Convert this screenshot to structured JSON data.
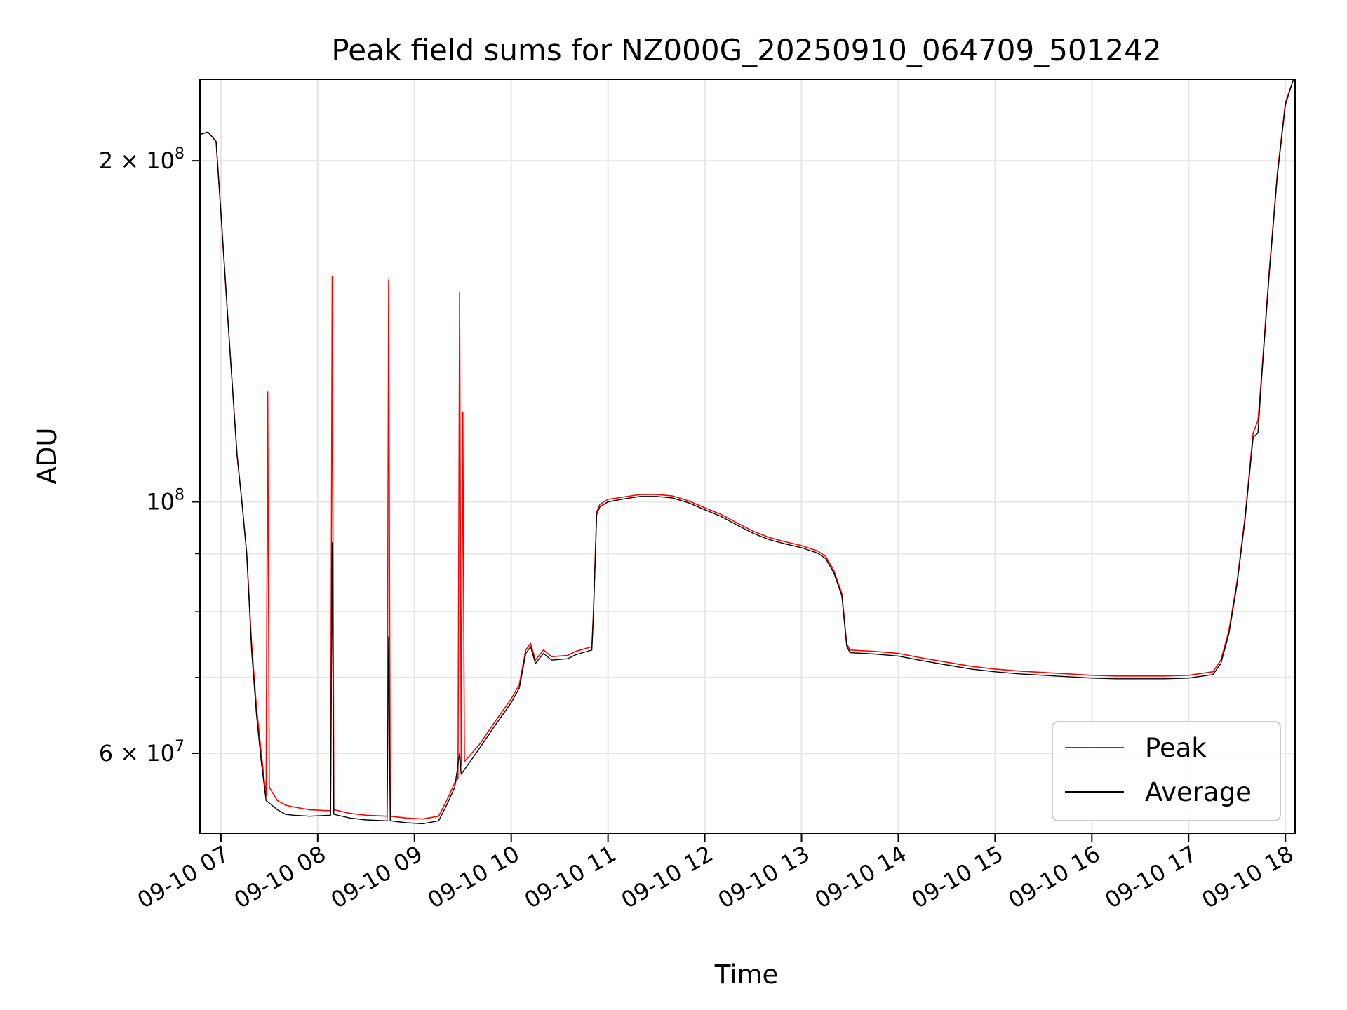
{
  "chart_data": {
    "type": "line",
    "title": "Peak field sums for NZ000G_20250910_064709_501242",
    "xlabel": "Time",
    "ylabel": "ADU",
    "y_scale": "log",
    "xlim": [
      "2025-09-10 06:47",
      "2025-09-10 18:06"
    ],
    "ylim": [
      51000000,
      236000000
    ],
    "grid": true,
    "legend_position": "lower-right",
    "x_ticks": [
      {
        "time": "2025-09-10 07:00",
        "label": "09-10 07"
      },
      {
        "time": "2025-09-10 08:00",
        "label": "09-10 08"
      },
      {
        "time": "2025-09-10 09:00",
        "label": "09-10 09"
      },
      {
        "time": "2025-09-10 10:00",
        "label": "09-10 10"
      },
      {
        "time": "2025-09-10 11:00",
        "label": "09-10 11"
      },
      {
        "time": "2025-09-10 12:00",
        "label": "09-10 12"
      },
      {
        "time": "2025-09-10 13:00",
        "label": "09-10 13"
      },
      {
        "time": "2025-09-10 14:00",
        "label": "09-10 14"
      },
      {
        "time": "2025-09-10 15:00",
        "label": "09-10 15"
      },
      {
        "time": "2025-09-10 16:00",
        "label": "09-10 16"
      },
      {
        "time": "2025-09-10 17:00",
        "label": "09-10 17"
      },
      {
        "time": "2025-09-10 18:00",
        "label": "09-10 18"
      }
    ],
    "y_ticks": [
      {
        "value": 200000000,
        "base": "2",
        "sup": "8",
        "kind": "sci"
      },
      {
        "value": 100000000,
        "base": "",
        "sup": "8",
        "kind": "pow"
      },
      {
        "value": 60000000,
        "base": "6",
        "sup": "7",
        "kind": "sci"
      }
    ],
    "y_minor_ticks": [
      70000000,
      80000000,
      90000000,
      300000000
    ],
    "series": [
      {
        "name": "Peak",
        "color": "#ff0000",
        "points": [
          [
            "2025-09-10 06:47",
            211000000
          ],
          [
            "2025-09-10 06:52",
            212000000
          ],
          [
            "2025-09-10 06:57",
            208000000
          ],
          [
            "2025-09-10 07:00",
            180000000
          ],
          [
            "2025-09-10 07:05",
            140000000
          ],
          [
            "2025-09-10 07:10",
            110000000
          ],
          [
            "2025-09-10 07:13",
            100000000
          ],
          [
            "2025-09-10 07:16",
            90000000
          ],
          [
            "2025-09-10 07:19",
            75000000
          ],
          [
            "2025-09-10 07:22",
            66000000
          ],
          [
            "2025-09-10 07:25",
            60000000
          ],
          [
            "2025-09-10 07:28",
            55000000
          ],
          [
            "2025-09-10 07:29",
            125000000
          ],
          [
            "2025-09-10 07:30",
            56000000
          ],
          [
            "2025-09-10 07:35",
            54500000
          ],
          [
            "2025-09-10 07:40",
            54000000
          ],
          [
            "2025-09-10 07:45",
            53800000
          ],
          [
            "2025-09-10 07:55",
            53500000
          ],
          [
            "2025-09-10 08:05",
            53400000
          ],
          [
            "2025-09-10 08:08",
            53400000
          ],
          [
            "2025-09-10 08:09",
            158000000
          ],
          [
            "2025-09-10 08:10",
            53500000
          ],
          [
            "2025-09-10 08:20",
            53100000
          ],
          [
            "2025-09-10 08:30",
            52900000
          ],
          [
            "2025-09-10 08:43",
            52800000
          ],
          [
            "2025-09-10 08:44",
            157000000
          ],
          [
            "2025-09-10 08:45",
            52800000
          ],
          [
            "2025-09-10 08:55",
            52600000
          ],
          [
            "2025-09-10 09:05",
            52500000
          ],
          [
            "2025-09-10 09:15",
            52800000
          ],
          [
            "2025-09-10 09:20",
            54500000
          ],
          [
            "2025-09-10 09:25",
            56500000
          ],
          [
            "2025-09-10 09:27",
            57000000
          ],
          [
            "2025-09-10 09:28",
            153000000
          ],
          [
            "2025-09-10 09:29",
            58500000
          ],
          [
            "2025-09-10 09:30",
            120000000
          ],
          [
            "2025-09-10 09:31",
            59000000
          ],
          [
            "2025-09-10 09:40",
            61000000
          ],
          [
            "2025-09-10 09:50",
            64000000
          ],
          [
            "2025-09-10 10:00",
            67000000
          ],
          [
            "2025-09-10 10:05",
            69000000
          ],
          [
            "2025-09-10 10:09",
            74000000
          ],
          [
            "2025-09-10 10:12",
            75000000
          ],
          [
            "2025-09-10 10:15",
            72500000
          ],
          [
            "2025-09-10 10:20",
            74000000
          ],
          [
            "2025-09-10 10:25",
            73000000
          ],
          [
            "2025-09-10 10:35",
            73200000
          ],
          [
            "2025-09-10 10:40",
            73800000
          ],
          [
            "2025-09-10 10:50",
            74500000
          ],
          [
            "2025-09-10 10:51",
            80000000
          ],
          [
            "2025-09-10 10:53",
            98000000
          ],
          [
            "2025-09-10 10:55",
            99500000
          ],
          [
            "2025-09-10 11:00",
            100500000
          ],
          [
            "2025-09-10 11:10",
            101000000
          ],
          [
            "2025-09-10 11:20",
            101500000
          ],
          [
            "2025-09-10 11:30",
            101500000
          ],
          [
            "2025-09-10 11:40",
            101200000
          ],
          [
            "2025-09-10 11:50",
            100200000
          ],
          [
            "2025-09-10 12:00",
            98800000
          ],
          [
            "2025-09-10 12:10",
            97500000
          ],
          [
            "2025-09-10 12:20",
            95800000
          ],
          [
            "2025-09-10 12:30",
            94200000
          ],
          [
            "2025-09-10 12:40",
            93000000
          ],
          [
            "2025-09-10 12:50",
            92200000
          ],
          [
            "2025-09-10 13:00",
            91500000
          ],
          [
            "2025-09-10 13:10",
            90500000
          ],
          [
            "2025-09-10 13:15",
            89500000
          ],
          [
            "2025-09-10 13:20",
            87000000
          ],
          [
            "2025-09-10 13:25",
            83000000
          ],
          [
            "2025-09-10 13:28",
            75000000
          ],
          [
            "2025-09-10 13:30",
            74000000
          ],
          [
            "2025-09-10 13:45",
            73800000
          ],
          [
            "2025-09-10 14:00",
            73500000
          ],
          [
            "2025-09-10 14:15",
            72800000
          ],
          [
            "2025-09-10 14:30",
            72200000
          ],
          [
            "2025-09-10 14:45",
            71600000
          ],
          [
            "2025-09-10 15:00",
            71200000
          ],
          [
            "2025-09-10 15:15",
            70900000
          ],
          [
            "2025-09-10 15:30",
            70700000
          ],
          [
            "2025-09-10 15:45",
            70500000
          ],
          [
            "2025-09-10 16:00",
            70300000
          ],
          [
            "2025-09-10 16:15",
            70200000
          ],
          [
            "2025-09-10 16:30",
            70200000
          ],
          [
            "2025-09-10 16:45",
            70200000
          ],
          [
            "2025-09-10 17:00",
            70300000
          ],
          [
            "2025-09-10 17:15",
            70800000
          ],
          [
            "2025-09-10 17:20",
            72500000
          ],
          [
            "2025-09-10 17:25",
            77000000
          ],
          [
            "2025-09-10 17:30",
            85000000
          ],
          [
            "2025-09-10 17:35",
            97000000
          ],
          [
            "2025-09-10 17:40",
            115000000
          ],
          [
            "2025-09-10 17:43",
            118000000
          ],
          [
            "2025-09-10 17:45",
            128000000
          ],
          [
            "2025-09-10 17:50",
            160000000
          ],
          [
            "2025-09-10 17:55",
            195000000
          ],
          [
            "2025-09-10 18:00",
            225000000
          ],
          [
            "2025-09-10 18:05",
            236000000
          ]
        ]
      },
      {
        "name": "Average",
        "color": "#000000",
        "points": [
          [
            "2025-09-10 06:47",
            211000000
          ],
          [
            "2025-09-10 06:52",
            212000000
          ],
          [
            "2025-09-10 06:57",
            208000000
          ],
          [
            "2025-09-10 07:00",
            180000000
          ],
          [
            "2025-09-10 07:05",
            140000000
          ],
          [
            "2025-09-10 07:10",
            110000000
          ],
          [
            "2025-09-10 07:13",
            100000000
          ],
          [
            "2025-09-10 07:16",
            90000000
          ],
          [
            "2025-09-10 07:19",
            74000000
          ],
          [
            "2025-09-10 07:22",
            65000000
          ],
          [
            "2025-09-10 07:25",
            59000000
          ],
          [
            "2025-09-10 07:28",
            54500000
          ],
          [
            "2025-09-10 07:35",
            53500000
          ],
          [
            "2025-09-10 07:40",
            53000000
          ],
          [
            "2025-09-10 07:45",
            52900000
          ],
          [
            "2025-09-10 07:55",
            52800000
          ],
          [
            "2025-09-10 08:08",
            52900000
          ],
          [
            "2025-09-10 08:09",
            92000000
          ],
          [
            "2025-09-10 08:10",
            53000000
          ],
          [
            "2025-09-10 08:20",
            52600000
          ],
          [
            "2025-09-10 08:30",
            52400000
          ],
          [
            "2025-09-10 08:43",
            52300000
          ],
          [
            "2025-09-10 08:44",
            76000000
          ],
          [
            "2025-09-10 08:45",
            52300000
          ],
          [
            "2025-09-10 08:55",
            52100000
          ],
          [
            "2025-09-10 09:05",
            52000000
          ],
          [
            "2025-09-10 09:15",
            52300000
          ],
          [
            "2025-09-10 09:20",
            54000000
          ],
          [
            "2025-09-10 09:25",
            56000000
          ],
          [
            "2025-09-10 09:28",
            60000000
          ],
          [
            "2025-09-10 09:29",
            57500000
          ],
          [
            "2025-09-10 09:40",
            60500000
          ],
          [
            "2025-09-10 09:50",
            63500000
          ],
          [
            "2025-09-10 10:00",
            66500000
          ],
          [
            "2025-09-10 10:05",
            68500000
          ],
          [
            "2025-09-10 10:09",
            73500000
          ],
          [
            "2025-09-10 10:12",
            74500000
          ],
          [
            "2025-09-10 10:15",
            72000000
          ],
          [
            "2025-09-10 10:20",
            73500000
          ],
          [
            "2025-09-10 10:25",
            72500000
          ],
          [
            "2025-09-10 10:35",
            72700000
          ],
          [
            "2025-09-10 10:40",
            73300000
          ],
          [
            "2025-09-10 10:50",
            74000000
          ],
          [
            "2025-09-10 10:51",
            79500000
          ],
          [
            "2025-09-10 10:53",
            97500000
          ],
          [
            "2025-09-10 10:55",
            99000000
          ],
          [
            "2025-09-10 11:00",
            100000000
          ],
          [
            "2025-09-10 11:10",
            100600000
          ],
          [
            "2025-09-10 11:20",
            101100000
          ],
          [
            "2025-09-10 11:30",
            101100000
          ],
          [
            "2025-09-10 11:40",
            100800000
          ],
          [
            "2025-09-10 11:50",
            99800000
          ],
          [
            "2025-09-10 12:00",
            98400000
          ],
          [
            "2025-09-10 12:10",
            97100000
          ],
          [
            "2025-09-10 12:20",
            95400000
          ],
          [
            "2025-09-10 12:30",
            93800000
          ],
          [
            "2025-09-10 12:40",
            92600000
          ],
          [
            "2025-09-10 12:50",
            91800000
          ],
          [
            "2025-09-10 13:00",
            91100000
          ],
          [
            "2025-09-10 13:10",
            90100000
          ],
          [
            "2025-09-10 13:15",
            89100000
          ],
          [
            "2025-09-10 13:20",
            86600000
          ],
          [
            "2025-09-10 13:25",
            82600000
          ],
          [
            "2025-09-10 13:28",
            74600000
          ],
          [
            "2025-09-10 13:30",
            73600000
          ],
          [
            "2025-09-10 13:45",
            73400000
          ],
          [
            "2025-09-10 14:00",
            73100000
          ],
          [
            "2025-09-10 14:15",
            72400000
          ],
          [
            "2025-09-10 14:30",
            71800000
          ],
          [
            "2025-09-10 14:45",
            71200000
          ],
          [
            "2025-09-10 15:00",
            70800000
          ],
          [
            "2025-09-10 15:15",
            70500000
          ],
          [
            "2025-09-10 15:30",
            70300000
          ],
          [
            "2025-09-10 15:45",
            70100000
          ],
          [
            "2025-09-10 16:00",
            69900000
          ],
          [
            "2025-09-10 16:15",
            69800000
          ],
          [
            "2025-09-10 16:30",
            69800000
          ],
          [
            "2025-09-10 16:45",
            69800000
          ],
          [
            "2025-09-10 17:00",
            69900000
          ],
          [
            "2025-09-10 17:15",
            70400000
          ],
          [
            "2025-09-10 17:20",
            72000000
          ],
          [
            "2025-09-10 17:25",
            76500000
          ],
          [
            "2025-09-10 17:30",
            84500000
          ],
          [
            "2025-09-10 17:35",
            96500000
          ],
          [
            "2025-09-10 17:40",
            114000000
          ],
          [
            "2025-09-10 17:43",
            115000000
          ],
          [
            "2025-09-10 17:45",
            127000000
          ],
          [
            "2025-09-10 17:50",
            159000000
          ],
          [
            "2025-09-10 17:55",
            194000000
          ],
          [
            "2025-09-10 18:00",
            224000000
          ],
          [
            "2025-09-10 18:05",
            236000000
          ]
        ]
      }
    ]
  }
}
